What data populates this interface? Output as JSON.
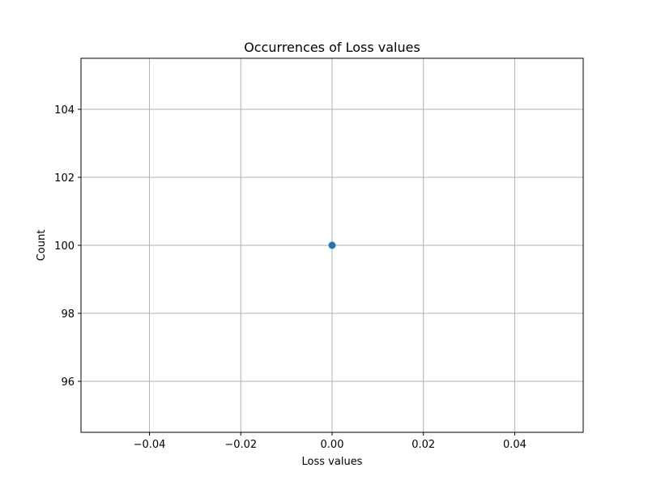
{
  "chart_data": {
    "type": "scatter",
    "title": "Occurrences of Loss values",
    "xlabel": "Loss values",
    "ylabel": "Count",
    "xlim": [
      -0.055,
      0.055
    ],
    "ylim": [
      94.5,
      105.5
    ],
    "xticks": [
      -0.04,
      -0.02,
      0.0,
      0.02,
      0.04
    ],
    "xtick_labels": [
      "−0.04",
      "−0.02",
      "0.00",
      "0.02",
      "0.04"
    ],
    "yticks": [
      96,
      98,
      100,
      102,
      104
    ],
    "ytick_labels": [
      "96",
      "98",
      "100",
      "102",
      "104"
    ],
    "grid": true,
    "series": [
      {
        "x": [
          0.0
        ],
        "y": [
          100
        ],
        "color": "#1f77b4",
        "marker": "circle"
      }
    ]
  }
}
